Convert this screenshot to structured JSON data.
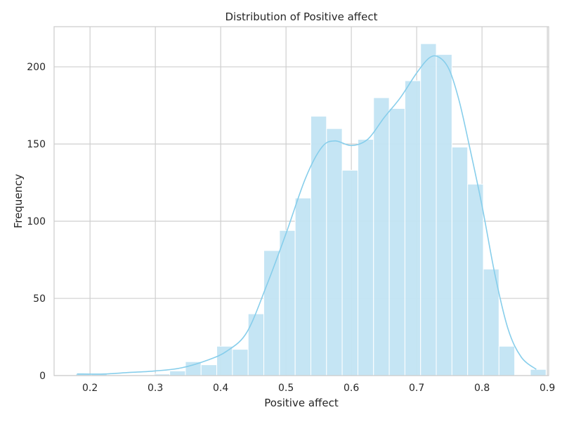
{
  "chart_data": {
    "type": "bar",
    "title": "Distribution of Positive affect",
    "xlabel": "Positive affect",
    "ylabel": "Frequency",
    "xlim": [
      0.145,
      0.902
    ],
    "ylim": [
      0,
      226
    ],
    "x_ticks": [
      0.2,
      0.3,
      0.4,
      0.5,
      0.6,
      0.7,
      0.8,
      0.9
    ],
    "x_tick_labels": [
      "0.2",
      "0.3",
      "0.4",
      "0.5",
      "0.6",
      "0.7",
      "0.8",
      "0.9"
    ],
    "y_ticks": [
      0,
      50,
      100,
      150,
      200
    ],
    "y_tick_labels": [
      "0",
      "50",
      "100",
      "150",
      "200"
    ],
    "grid": true,
    "legend": "none",
    "bins": [
      {
        "x0": 0.178,
        "x1": 0.202,
        "value": 1
      },
      {
        "x0": 0.202,
        "x1": 0.226,
        "value": 1
      },
      {
        "x0": 0.226,
        "x1": 0.25,
        "value": 0
      },
      {
        "x0": 0.25,
        "x1": 0.274,
        "value": 0
      },
      {
        "x0": 0.274,
        "x1": 0.298,
        "value": 0
      },
      {
        "x0": 0.298,
        "x1": 0.322,
        "value": 1
      },
      {
        "x0": 0.322,
        "x1": 0.346,
        "value": 3
      },
      {
        "x0": 0.346,
        "x1": 0.37,
        "value": 9
      },
      {
        "x0": 0.37,
        "x1": 0.394,
        "value": 7
      },
      {
        "x0": 0.394,
        "x1": 0.418,
        "value": 19
      },
      {
        "x0": 0.418,
        "x1": 0.442,
        "value": 17
      },
      {
        "x0": 0.442,
        "x1": 0.466,
        "value": 40
      },
      {
        "x0": 0.466,
        "x1": 0.49,
        "value": 81
      },
      {
        "x0": 0.49,
        "x1": 0.514,
        "value": 94
      },
      {
        "x0": 0.514,
        "x1": 0.538,
        "value": 115
      },
      {
        "x0": 0.538,
        "x1": 0.562,
        "value": 168
      },
      {
        "x0": 0.562,
        "x1": 0.586,
        "value": 160
      },
      {
        "x0": 0.586,
        "x1": 0.61,
        "value": 133
      },
      {
        "x0": 0.61,
        "x1": 0.634,
        "value": 153
      },
      {
        "x0": 0.634,
        "x1": 0.658,
        "value": 180
      },
      {
        "x0": 0.658,
        "x1": 0.682,
        "value": 173
      },
      {
        "x0": 0.682,
        "x1": 0.706,
        "value": 191
      },
      {
        "x0": 0.706,
        "x1": 0.73,
        "value": 215
      },
      {
        "x0": 0.73,
        "x1": 0.754,
        "value": 208
      },
      {
        "x0": 0.754,
        "x1": 0.778,
        "value": 148
      },
      {
        "x0": 0.778,
        "x1": 0.802,
        "value": 124
      },
      {
        "x0": 0.802,
        "x1": 0.826,
        "value": 69
      },
      {
        "x0": 0.826,
        "x1": 0.85,
        "value": 19
      },
      {
        "x0": 0.85,
        "x1": 0.874,
        "value": 0
      },
      {
        "x0": 0.874,
        "x1": 0.898,
        "value": 4
      }
    ],
    "kde_curve": {
      "x": [
        0.18,
        0.22,
        0.26,
        0.3,
        0.34,
        0.38,
        0.41,
        0.44,
        0.47,
        0.5,
        0.53,
        0.555,
        0.575,
        0.6,
        0.625,
        0.65,
        0.675,
        0.7,
        0.72,
        0.735,
        0.75,
        0.765,
        0.78,
        0.8,
        0.82,
        0.84,
        0.86,
        0.883
      ],
      "y": [
        1,
        1,
        2,
        3,
        5,
        10,
        16,
        28,
        58,
        92,
        128,
        148,
        152,
        149,
        153,
        167,
        180,
        196,
        206,
        206,
        198,
        178,
        150,
        110,
        65,
        30,
        12,
        4
      ]
    },
    "bar_color": "#c2e4f3",
    "line_color": "#87ceeb",
    "grid_color": "#cfcfcf",
    "spine_color": "#cccccc"
  }
}
